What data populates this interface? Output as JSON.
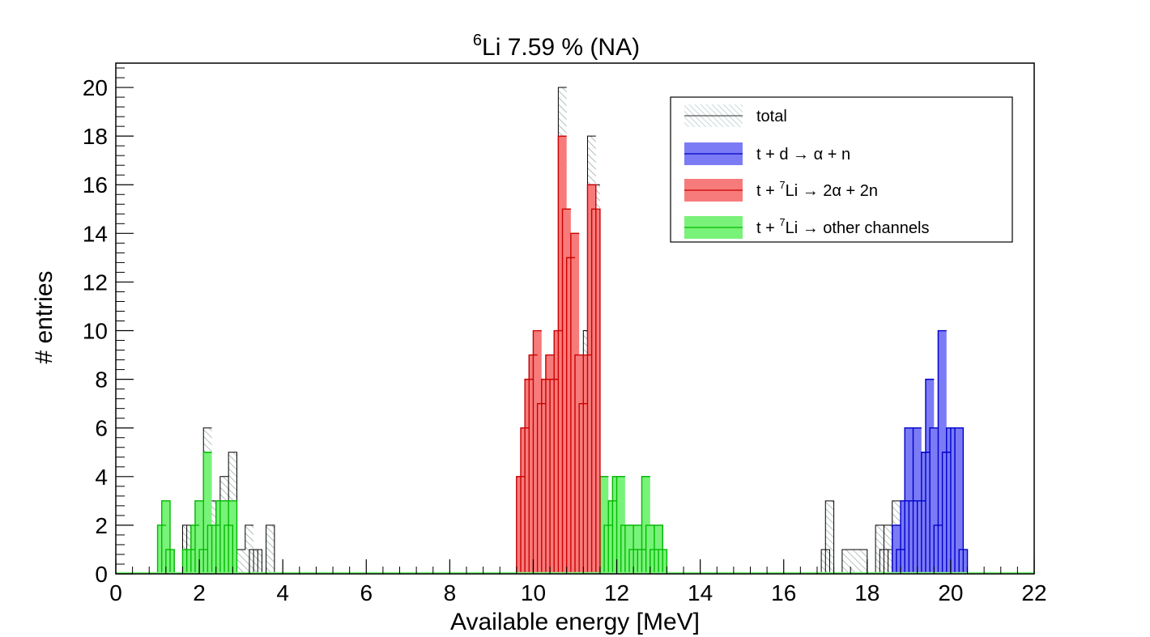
{
  "chart_data": {
    "type": "bar",
    "title": {
      "sup": "6",
      "main": "Li  7.59 % (NA)"
    },
    "xlabel": "Available energy [MeV]",
    "ylabel": "# entries",
    "xlim": [
      0,
      22
    ],
    "ylim": [
      0,
      21
    ],
    "xticks": [
      "0",
      "2",
      "4",
      "6",
      "8",
      "10",
      "12",
      "14",
      "16",
      "18",
      "20",
      "22"
    ],
    "yticks": [
      "0",
      "2",
      "4",
      "6",
      "8",
      "10",
      "12",
      "14",
      "16",
      "18",
      "20"
    ],
    "bin_width": 0.2,
    "legend": {
      "position": "top-right",
      "entries": [
        {
          "key": "total",
          "parts": [
            {
              "t": "total"
            }
          ]
        },
        {
          "key": "td",
          "parts": [
            {
              "t": "t + d → α + n"
            }
          ]
        },
        {
          "key": "t7_2a",
          "parts": [
            {
              "t": "t + "
            },
            {
              "sup": "7"
            },
            {
              "t": "Li → 2α + 2n"
            }
          ]
        },
        {
          "key": "t7_other",
          "parts": [
            {
              "t": "t + "
            },
            {
              "sup": "7"
            },
            {
              "t": "Li → other channels"
            }
          ]
        }
      ]
    },
    "series": [
      {
        "key": "total",
        "name": "total",
        "fill": "hatch",
        "color": "#aab8b8",
        "bins": [
          [
            1.0,
            2
          ],
          [
            1.1,
            3
          ],
          [
            1.2,
            1
          ],
          [
            1.6,
            2
          ],
          [
            1.7,
            2
          ],
          [
            1.8,
            2
          ],
          [
            1.9,
            3
          ],
          [
            2.0,
            1
          ],
          [
            2.1,
            6
          ],
          [
            2.2,
            3
          ],
          [
            2.3,
            2
          ],
          [
            2.4,
            3
          ],
          [
            2.5,
            4
          ],
          [
            2.6,
            2
          ],
          [
            2.7,
            5
          ],
          [
            2.9,
            1
          ],
          [
            3.1,
            2
          ],
          [
            3.2,
            1
          ],
          [
            3.3,
            1
          ],
          [
            3.6,
            2
          ],
          [
            9.6,
            4
          ],
          [
            9.7,
            6
          ],
          [
            9.8,
            8
          ],
          [
            9.9,
            9
          ],
          [
            10.0,
            10
          ],
          [
            10.1,
            7
          ],
          [
            10.2,
            8
          ],
          [
            10.3,
            9
          ],
          [
            10.4,
            8
          ],
          [
            10.5,
            10
          ],
          [
            10.6,
            20
          ],
          [
            10.7,
            15
          ],
          [
            10.8,
            14
          ],
          [
            10.9,
            14
          ],
          [
            11.0,
            9
          ],
          [
            11.1,
            7
          ],
          [
            11.2,
            10
          ],
          [
            11.3,
            18
          ],
          [
            11.4,
            16
          ],
          [
            11.5,
            4
          ],
          [
            11.6,
            4
          ],
          [
            11.7,
            2
          ],
          [
            11.8,
            3
          ],
          [
            11.9,
            4
          ],
          [
            12.0,
            4
          ],
          [
            12.1,
            2
          ],
          [
            12.2,
            2
          ],
          [
            12.3,
            1
          ],
          [
            12.4,
            2
          ],
          [
            12.5,
            1
          ],
          [
            12.6,
            4
          ],
          [
            12.7,
            2
          ],
          [
            12.8,
            1
          ],
          [
            12.9,
            2
          ],
          [
            13.0,
            1
          ],
          [
            16.9,
            1
          ],
          [
            17.0,
            3
          ],
          [
            17.4,
            1
          ],
          [
            17.6,
            1
          ],
          [
            17.8,
            1
          ],
          [
            18.2,
            2
          ],
          [
            18.3,
            1
          ],
          [
            18.4,
            2
          ],
          [
            18.5,
            1
          ],
          [
            18.6,
            3
          ],
          [
            18.7,
            2
          ],
          [
            18.8,
            3
          ],
          [
            18.9,
            6
          ],
          [
            19.0,
            3
          ],
          [
            19.1,
            6
          ],
          [
            19.2,
            3
          ],
          [
            19.3,
            5
          ],
          [
            19.4,
            8
          ],
          [
            19.5,
            6
          ],
          [
            19.6,
            2
          ],
          [
            19.7,
            10
          ],
          [
            19.8,
            5
          ],
          [
            19.9,
            6
          ],
          [
            20.0,
            6
          ],
          [
            20.1,
            6
          ],
          [
            20.2,
            1
          ]
        ]
      },
      {
        "key": "td",
        "name": "t + d → α + n",
        "fill": "solid",
        "color": "#7b7bf5",
        "line": "#0000cc",
        "bins": [
          [
            18.6,
            2
          ],
          [
            18.7,
            1
          ],
          [
            18.8,
            3
          ],
          [
            18.9,
            6
          ],
          [
            19.0,
            3
          ],
          [
            19.1,
            6
          ],
          [
            19.2,
            3
          ],
          [
            19.3,
            5
          ],
          [
            19.4,
            8
          ],
          [
            19.5,
            6
          ],
          [
            19.6,
            2
          ],
          [
            19.7,
            10
          ],
          [
            19.8,
            5
          ],
          [
            19.9,
            6
          ],
          [
            20.0,
            6
          ],
          [
            20.1,
            6
          ],
          [
            20.2,
            1
          ]
        ]
      },
      {
        "key": "t7_2a",
        "name": "t + 7Li → 2α + 2n",
        "fill": "solid",
        "color": "#f77b7b",
        "line": "#cc0000",
        "bins": [
          [
            9.6,
            4
          ],
          [
            9.7,
            6
          ],
          [
            9.8,
            8
          ],
          [
            9.9,
            9
          ],
          [
            10.0,
            10
          ],
          [
            10.1,
            7
          ],
          [
            10.2,
            8
          ],
          [
            10.3,
            9
          ],
          [
            10.4,
            8
          ],
          [
            10.5,
            10
          ],
          [
            10.6,
            18
          ],
          [
            10.7,
            15
          ],
          [
            10.8,
            13
          ],
          [
            10.9,
            14
          ],
          [
            11.0,
            9
          ],
          [
            11.1,
            7
          ],
          [
            11.2,
            9
          ],
          [
            11.3,
            16
          ],
          [
            11.4,
            15
          ]
        ]
      },
      {
        "key": "t7_other",
        "name": "t + 7Li → other channels",
        "fill": "solid",
        "color": "#79f279",
        "line": "#00bb00",
        "bins": [
          [
            1.0,
            2
          ],
          [
            1.1,
            3
          ],
          [
            1.2,
            1
          ],
          [
            1.6,
            1
          ],
          [
            1.7,
            1
          ],
          [
            1.8,
            2
          ],
          [
            1.9,
            3
          ],
          [
            2.0,
            1
          ],
          [
            2.1,
            5
          ],
          [
            2.2,
            2
          ],
          [
            2.3,
            2
          ],
          [
            2.4,
            3
          ],
          [
            2.5,
            3
          ],
          [
            2.6,
            2
          ],
          [
            2.7,
            3
          ],
          [
            10.6,
            1
          ],
          [
            10.8,
            1
          ],
          [
            11.0,
            1
          ],
          [
            11.3,
            1
          ],
          [
            11.4,
            4
          ],
          [
            11.5,
            4
          ],
          [
            11.6,
            4
          ],
          [
            11.7,
            2
          ],
          [
            11.8,
            3
          ],
          [
            11.9,
            4
          ],
          [
            12.0,
            4
          ],
          [
            12.1,
            2
          ],
          [
            12.2,
            2
          ],
          [
            12.3,
            1
          ],
          [
            12.4,
            2
          ],
          [
            12.5,
            1
          ],
          [
            12.6,
            4
          ],
          [
            12.7,
            2
          ],
          [
            12.8,
            1
          ],
          [
            12.9,
            2
          ],
          [
            13.0,
            1
          ]
        ]
      }
    ]
  }
}
